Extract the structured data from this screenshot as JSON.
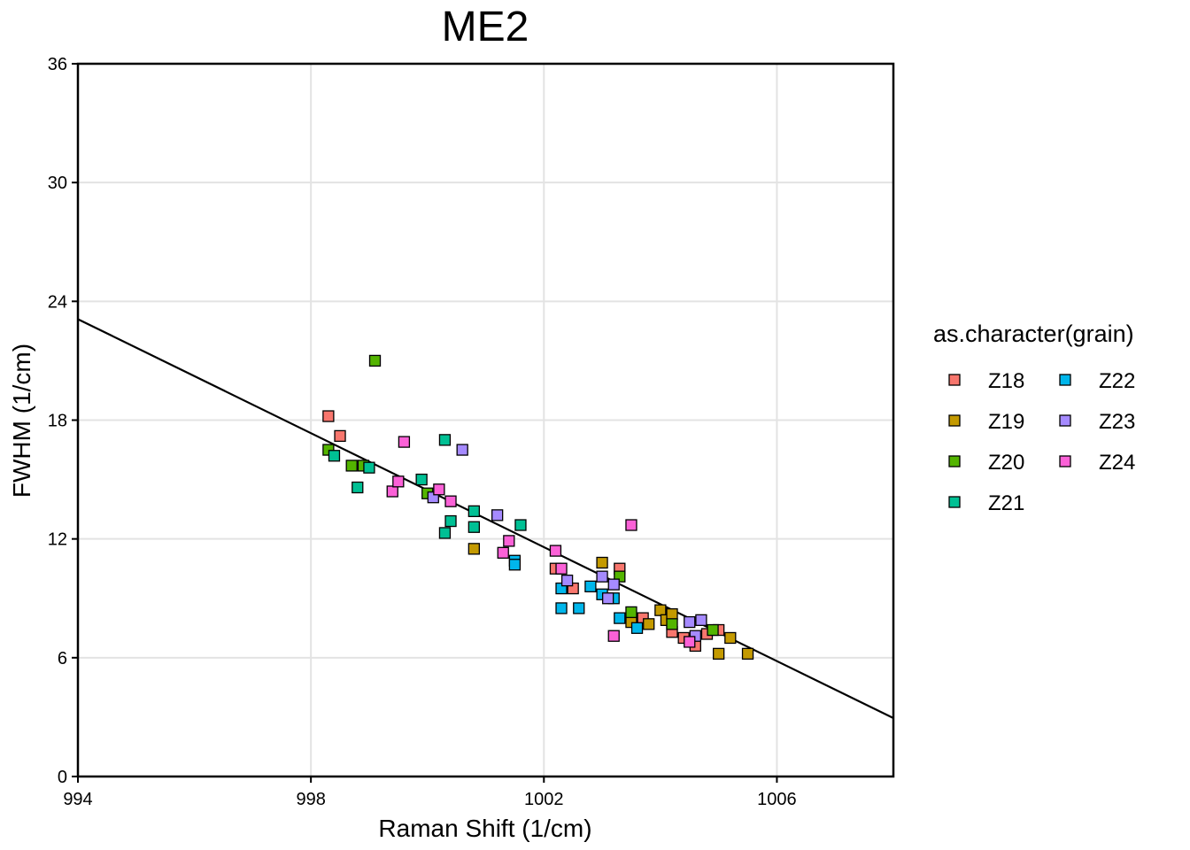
{
  "chart_data": {
    "type": "scatter",
    "title": "ME2",
    "xlabel": "Raman Shift (1/cm)",
    "ylabel": "FWHM (1/cm)",
    "xlim": [
      994,
      1008
    ],
    "ylim": [
      0,
      36
    ],
    "xticks": [
      994,
      998,
      1002,
      1006
    ],
    "yticks": [
      0,
      6,
      12,
      18,
      24,
      30,
      36
    ],
    "grid": true,
    "legend": {
      "title": "as.character(grain)",
      "placement": "right"
    },
    "trendline": {
      "x": [
        994,
        1008
      ],
      "y": [
        23.1,
        2.95
      ]
    },
    "series": [
      {
        "name": "Z18",
        "color": "#F8766D",
        "points": [
          [
            998.3,
            18.2
          ],
          [
            998.5,
            17.2
          ],
          [
            1002.2,
            10.5
          ],
          [
            1002.5,
            9.5
          ],
          [
            1003.3,
            10.5
          ],
          [
            1003.7,
            8.0
          ],
          [
            1004.2,
            7.3
          ],
          [
            1004.4,
            7.0
          ],
          [
            1004.6,
            6.6
          ],
          [
            1005.0,
            7.4
          ],
          [
            1004.8,
            7.2
          ]
        ]
      },
      {
        "name": "Z19",
        "color": "#C49A00",
        "points": [
          [
            1000.8,
            11.5
          ],
          [
            1003.0,
            10.8
          ],
          [
            1003.5,
            7.8
          ],
          [
            1003.8,
            7.7
          ],
          [
            1004.0,
            8.4
          ],
          [
            1004.1,
            7.9
          ],
          [
            1004.2,
            8.2
          ],
          [
            1005.0,
            6.2
          ],
          [
            1005.2,
            7.0
          ],
          [
            1005.5,
            6.2
          ]
        ]
      },
      {
        "name": "Z20",
        "color": "#53B400",
        "points": [
          [
            999.1,
            21.0
          ],
          [
            998.3,
            16.5
          ],
          [
            998.7,
            15.7
          ],
          [
            998.9,
            15.7
          ],
          [
            1000.0,
            14.3
          ],
          [
            1003.3,
            10.1
          ],
          [
            1003.5,
            8.3
          ],
          [
            1004.2,
            7.7
          ],
          [
            1004.9,
            7.4
          ]
        ]
      },
      {
        "name": "Z21",
        "color": "#00C094",
        "points": [
          [
            998.4,
            16.2
          ],
          [
            998.8,
            14.6
          ],
          [
            999.0,
            15.6
          ],
          [
            999.9,
            15.0
          ],
          [
            1000.3,
            17.0
          ],
          [
            1000.3,
            12.3
          ],
          [
            1000.4,
            12.9
          ],
          [
            1000.8,
            13.4
          ],
          [
            1000.8,
            12.6
          ],
          [
            1001.6,
            12.7
          ]
        ]
      },
      {
        "name": "Z22",
        "color": "#00B6EB",
        "points": [
          [
            1001.5,
            10.9
          ],
          [
            1001.5,
            10.7
          ],
          [
            1002.3,
            9.5
          ],
          [
            1002.3,
            8.5
          ],
          [
            1002.6,
            8.5
          ],
          [
            1002.8,
            9.6
          ],
          [
            1003.0,
            9.2
          ],
          [
            1003.2,
            9.0
          ],
          [
            1003.3,
            8.0
          ],
          [
            1003.6,
            7.5
          ]
        ]
      },
      {
        "name": "Z23",
        "color": "#A58AFF",
        "points": [
          [
            1000.6,
            16.5
          ],
          [
            1000.1,
            14.1
          ],
          [
            1001.2,
            13.2
          ],
          [
            1002.4,
            9.9
          ],
          [
            1003.0,
            10.1
          ],
          [
            1003.1,
            9.0
          ],
          [
            1003.2,
            9.7
          ],
          [
            1004.5,
            7.8
          ],
          [
            1004.7,
            7.9
          ],
          [
            1004.6,
            7.1
          ]
        ]
      },
      {
        "name": "Z24",
        "color": "#FB61D7",
        "points": [
          [
            999.6,
            16.9
          ],
          [
            999.4,
            14.4
          ],
          [
            999.5,
            14.9
          ],
          [
            1000.2,
            14.5
          ],
          [
            1000.4,
            13.9
          ],
          [
            1001.3,
            11.3
          ],
          [
            1001.4,
            11.9
          ],
          [
            1002.2,
            11.4
          ],
          [
            1002.3,
            10.5
          ],
          [
            1003.5,
            12.7
          ],
          [
            1003.2,
            7.1
          ],
          [
            1004.5,
            6.8
          ]
        ]
      }
    ]
  }
}
